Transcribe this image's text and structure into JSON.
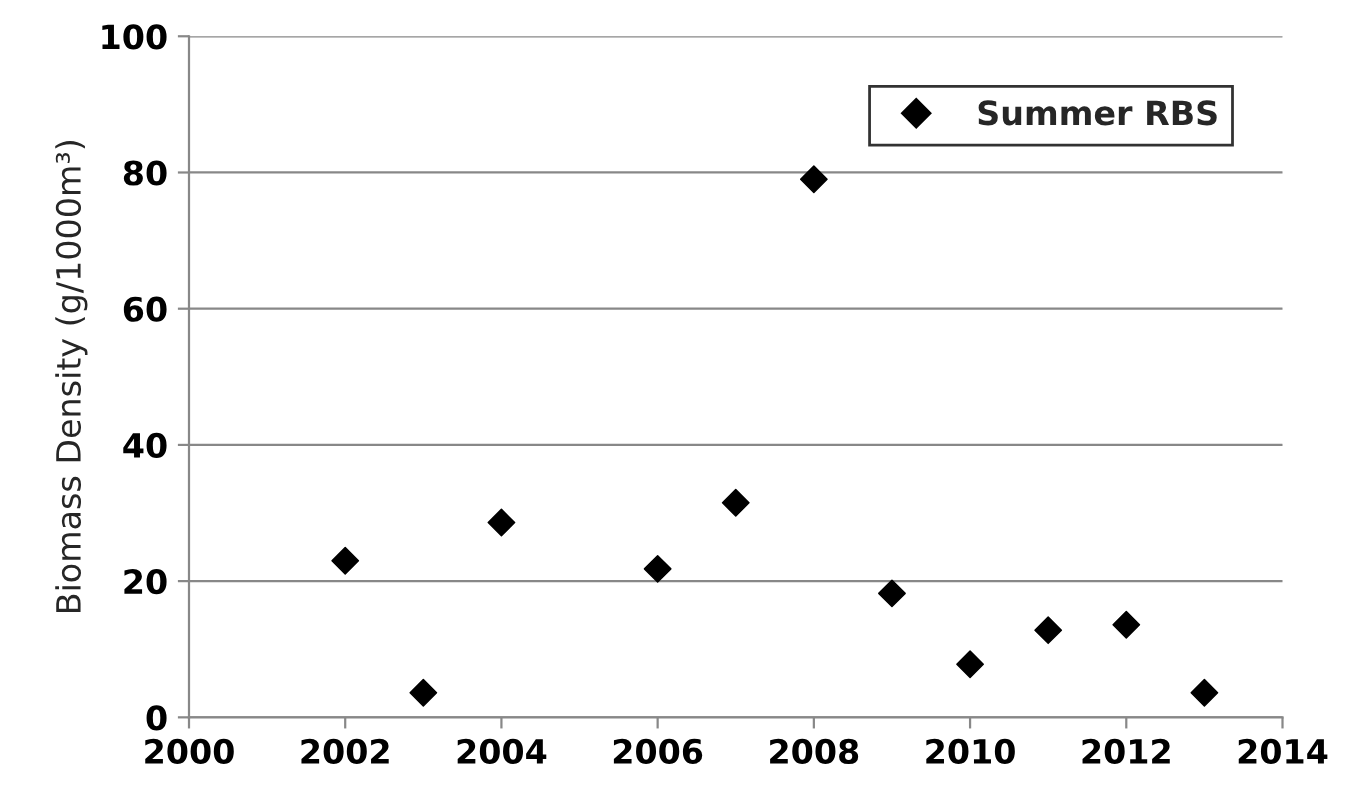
{
  "chart_data": {
    "type": "scatter",
    "ylabel": "Biomass Density (g/1000m³)",
    "x": [
      2002,
      2003,
      2004,
      2006,
      2007,
      2008,
      2009,
      2010,
      2011,
      2012,
      2013
    ],
    "series": [
      {
        "name": "Summer RBS",
        "color": "#000000",
        "values": [
          23,
          3.6,
          28.6,
          21.8,
          31.5,
          79,
          18.2,
          7.8,
          12.8,
          13.6,
          3.6
        ]
      }
    ],
    "xlim": [
      2000,
      2014
    ],
    "xticks": [
      2000,
      2002,
      2004,
      2006,
      2008,
      2010,
      2012,
      2014
    ],
    "ylim": [
      0,
      100
    ],
    "yticks": [
      0,
      20,
      40,
      60,
      80,
      100
    ],
    "grid": "y",
    "legend": "top right",
    "marker": "diamond"
  }
}
